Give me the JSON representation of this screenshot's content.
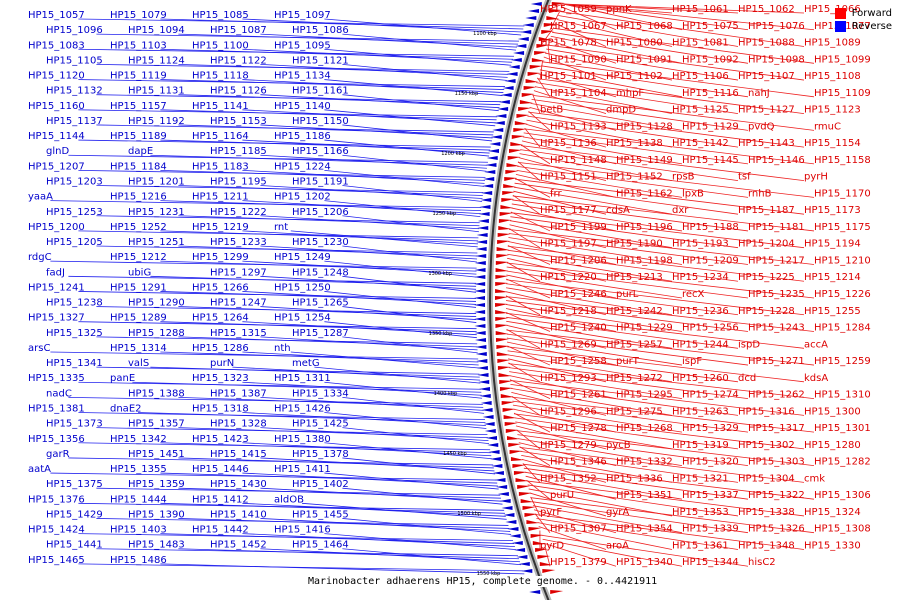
{
  "caption": "Marinobacter adhaerens HP15, complete genome. - 0..4421911",
  "legend": [
    {
      "label": "Forward",
      "color": "#ff0000"
    },
    {
      "label": "Reverse",
      "color": "#0000ff"
    }
  ],
  "colors": {
    "forward": "#dd0000",
    "reverse": "#0000cc",
    "forward_line": "#ee2222",
    "reverse_line": "#2222ee",
    "backbone": "#333333"
  },
  "ruler": [
    "1100 kbp",
    "1150 kbp",
    "1200 kbp",
    "1250 kbp",
    "1300 kbp",
    "1350 kbp",
    "1400 kbp",
    "1450 kbp",
    "1500 kbp",
    "1550 kbp"
  ],
  "reverse_labels": [
    "HP15_1057",
    "HP15_1079",
    "HP15_1085",
    "HP15_1097",
    "HP15_1096",
    "HP15_1094",
    "HP15_1087",
    "HP15_1086",
    "HP15_1083",
    "HP15_1103",
    "HP15_1100",
    "HP15_1095",
    "HP15_1105",
    "HP15_1124",
    "HP15_1122",
    "HP15_1121",
    "HP15_1120",
    "HP15_1119",
    "HP15_1118",
    "HP15_1134",
    "HP15_1132",
    "HP15_1131",
    "HP15_1126",
    "HP15_1161",
    "HP15_1160",
    "HP15_1157",
    "HP15_1141",
    "HP15_1140",
    "HP15_1137",
    "HP15_1192",
    "HP15_1153",
    "HP15_1150",
    "HP15_1144",
    "HP15_1189",
    "HP15_1164",
    "HP15_1186",
    "glnD",
    "dapE",
    "HP15_1185",
    "HP15_1166",
    "HP15_1207",
    "HP15_1184",
    "HP15_1183",
    "HP15_1224",
    "HP15_1203",
    "HP15_1201",
    "HP15_1195",
    "HP15_1191",
    "yaaA",
    "HP15_1216",
    "HP15_1211",
    "HP15_1202",
    "HP15_1253",
    "HP15_1231",
    "HP15_1222",
    "HP15_1206",
    "HP15_1200",
    "HP15_1252",
    "HP15_1219",
    "rnt",
    "HP15_1205",
    "HP15_1251",
    "HP15_1233",
    "HP15_1230",
    "rdgC",
    "HP15_1212",
    "HP15_1299",
    "HP15_1249",
    "fadJ",
    "ubiG",
    "HP15_1297",
    "HP15_1248",
    "HP15_1241",
    "HP15_1291",
    "HP15_1266",
    "HP15_1250",
    "HP15_1238",
    "HP15_1290",
    "HP15_1247",
    "HP15_1265",
    "HP15_1327",
    "HP15_1289",
    "HP15_1264",
    "HP15_1254",
    "HP15_1325",
    "HP15_1288",
    "HP15_1315",
    "HP15_1287",
    "arsC",
    "HP15_1314",
    "HP15_1286",
    "nth",
    "HP15_1341",
    "valS",
    "purN",
    "metG",
    "HP15_1335",
    "panE",
    "HP15_1323",
    "HP15_1311",
    "nadC",
    "HP15_1388",
    "HP15_1387",
    "HP15_1334",
    "HP15_1381",
    "dnaE2",
    "HP15_1318",
    "HP15_1426",
    "HP15_1373",
    "HP15_1357",
    "HP15_1328",
    "HP15_1425",
    "HP15_1356",
    "HP15_1342",
    "HP15_1423",
    "HP15_1380",
    "garR",
    "HP15_1451",
    "HP15_1415",
    "HP15_1378",
    "aatA",
    "HP15_1355",
    "HP15_1446",
    "HP15_1411",
    "HP15_1375",
    "HP15_1359",
    "HP15_1430",
    "HP15_1402",
    "HP15_1376",
    "HP15_1444",
    "HP15_1412",
    "aldOB",
    "HP15_1429",
    "HP15_1390",
    "HP15_1410",
    "HP15_1455",
    "HP15_1424",
    "HP15_1403",
    "HP15_1442",
    "HP15_1416",
    "HP15_1441",
    "HP15_1483",
    "HP15_1452",
    "HP15_1464",
    "HP15_1465",
    "HP15_1486"
  ],
  "forward_labels": [
    "HP15_1059",
    "ppnK",
    "HP15_1061",
    "HP15_1062",
    "HP15_1066",
    "HP15_1067",
    "HP15_1068",
    "HP15_1075",
    "HP15_1076",
    "HP15_1077",
    "HP15_1078",
    "HP15_1080",
    "HP15_1081",
    "HP15_1088",
    "HP15_1089",
    "HP15_1090",
    "HP15_1091",
    "HP15_1092",
    "HP15_1098",
    "HP15_1099",
    "HP15_1101",
    "HP15_1102",
    "HP15_1106",
    "HP15_1107",
    "HP15_1108",
    "HP15_1104",
    "mhpF",
    "HP15_1116",
    "nahJ",
    "HP15_1109",
    "betB",
    "dmpD",
    "HP15_1125",
    "HP15_1127",
    "HP15_1123",
    "HP15_1133",
    "HP15_1128",
    "HP15_1129",
    "pvdQ",
    "rmuC",
    "HP15_1136",
    "HP15_1138",
    "HP15_1142",
    "HP15_1143",
    "HP15_1154",
    "HP15_1148",
    "HP15_1149",
    "HP15_1145",
    "HP15_1146",
    "HP15_1158",
    "HP15_1151",
    "HP15_1152",
    "rpsB",
    "tsf",
    "pyrH",
    "frr",
    "HP15_1162",
    "lpxB",
    "rnhB",
    "HP15_1170",
    "HP15_1177",
    "cdsA",
    "dxr",
    "HP15_1187",
    "HP15_1173",
    "HP15_1199",
    "HP15_1196",
    "HP15_1188",
    "HP15_1181",
    "HP15_1175",
    "HP15_1197",
    "HP15_1190",
    "HP15_1193",
    "HP15_1204",
    "HP15_1194",
    "HP15_1206",
    "HP15_1198",
    "HP15_1209",
    "HP15_1217",
    "HP15_1210",
    "HP15_1220",
    "HP15_1213",
    "HP15_1234",
    "HP15_1225",
    "HP15_1214",
    "HP15_1246",
    "purL",
    "recX",
    "HP15_1235",
    "HP15_1226",
    "HP15_1218",
    "HP15_1242",
    "HP15_1236",
    "HP15_1228",
    "HP15_1255",
    "HP15_1240",
    "HP15_1229",
    "HP15_1256",
    "HP15_1243",
    "HP15_1284",
    "HP15_1269",
    "HP15_1257",
    "HP15_1244",
    "ispD",
    "accA",
    "HP15_1258",
    "purT",
    "ispF",
    "HP15_1271",
    "HP15_1259",
    "HP15_1293",
    "HP15_1272",
    "HP15_1260",
    "dcd",
    "kdsA",
    "HP15_1261",
    "HP15_1295",
    "HP15_1274",
    "HP15_1262",
    "HP15_1310",
    "HP15_1296",
    "HP15_1275",
    "HP15_1263",
    "HP15_1316",
    "HP15_1300",
    "HP15_1278",
    "HP15_1268",
    "HP15_1329",
    "HP15_1317",
    "HP15_1301",
    "HP15_1279",
    "pycB",
    "HP15_1319",
    "HP15_1302",
    "HP15_1280",
    "HP15_1346",
    "HP15_1332",
    "HP15_1320",
    "HP15_1303",
    "HP15_1282",
    "HP15_1352",
    "HP15_1336",
    "HP15_1321",
    "HP15_1304",
    "cmk",
    "purU",
    "HP15_1351",
    "HP15_1337",
    "HP15_1322",
    "HP15_1306",
    "pyrF",
    "gyrA",
    "HP15_1353",
    "HP15_1338",
    "HP15_1324",
    "HP15_1307",
    "HP15_1354",
    "HP15_1339",
    "HP15_1326",
    "HP15_1308",
    "pyrD",
    "aroA",
    "HP15_1361",
    "HP15_1348",
    "HP15_1330",
    "HP15_1379",
    "HP15_1340",
    "HP15_1344",
    "hisC2"
  ]
}
